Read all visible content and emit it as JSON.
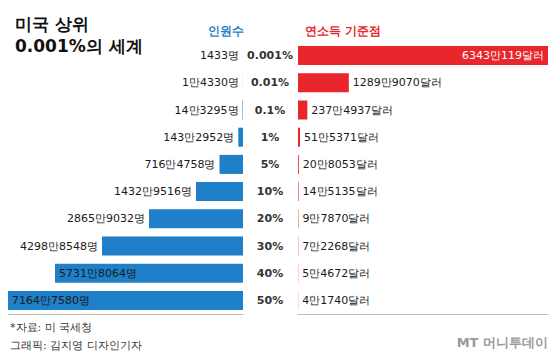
{
  "title": "미국 상위\n0.001%의 세계",
  "notes": [
    "*자료: 미 국세청",
    "그래픽: 김지영 디자인기자"
  ],
  "logo": "MT 머니투데이",
  "chart_data": [
    {
      "type": "bar",
      "orientation": "horizontal",
      "title": "인원수",
      "categories": [
        "0.001%",
        "0.01%",
        "0.1%",
        "1%",
        "5%",
        "10%",
        "20%",
        "30%",
        "40%",
        "50%"
      ],
      "values": [
        1433,
        14330,
        143295,
        1432952,
        7164758,
        14329516,
        28659032,
        42988548,
        57318064,
        71647580
      ],
      "value_labels": [
        "1433명",
        "1만4330명",
        "14만3295명",
        "143만2952명",
        "716만4758명",
        "1432만9516명",
        "2865만9032명",
        "4298만8548명",
        "5731만8064명",
        "7164만7580명"
      ],
      "color": "#1f7fc8",
      "xlim": [
        0,
        71647580
      ],
      "data_labels": true,
      "tick_labels": "y"
    },
    {
      "type": "bar",
      "orientation": "horizontal",
      "title": "연소득 기준점",
      "categories": [
        "0.001%",
        "0.01%",
        "0.1%",
        "1%",
        "5%",
        "10%",
        "20%",
        "30%",
        "40%",
        "50%"
      ],
      "values": [
        63430119,
        12899070,
        2374937,
        515371,
        208053,
        145135,
        97870,
        72268,
        54672,
        41740
      ],
      "value_labels": [
        "6343만119달러",
        "1289만9070달러",
        "237만4937달러",
        "51만5371달러",
        "20만8053달러",
        "14만5135달러",
        "9만7870달러",
        "7만2268달러",
        "5만4672달러",
        "4만1740달러"
      ],
      "color": "#e8262b",
      "xlim": [
        0,
        63430119
      ],
      "data_labels": true,
      "tick_labels": false
    }
  ]
}
